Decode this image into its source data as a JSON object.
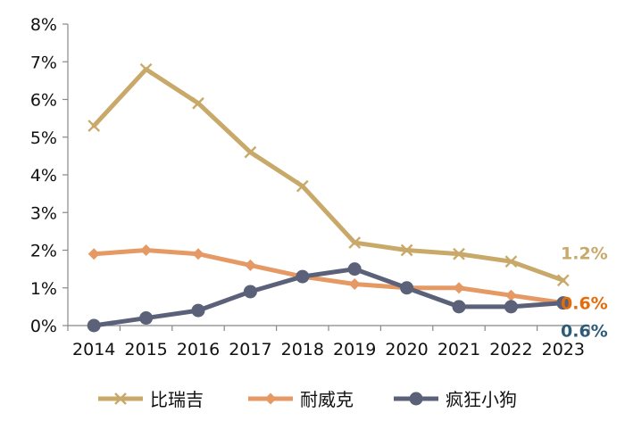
{
  "chart_data": {
    "type": "line",
    "title": "",
    "xlabel": "",
    "ylabel": "",
    "x": [
      "2014",
      "2015",
      "2016",
      "2017",
      "2018",
      "2019",
      "2020",
      "2021",
      "2022",
      "2023"
    ],
    "ylim": [
      0,
      8
    ],
    "y_unit": "%",
    "y_ticks": [
      "0%",
      "1%",
      "2%",
      "3%",
      "4%",
      "5%",
      "6%",
      "7%",
      "8%"
    ],
    "grid": false,
    "legend_position": "bottom",
    "series": [
      {
        "name": "比瑞吉",
        "color": "#C8A96A",
        "marker": "x",
        "end_label": "1.2%",
        "values": [
          5.3,
          6.8,
          5.9,
          4.6,
          3.7,
          2.2,
          2.0,
          1.9,
          1.7,
          1.2
        ]
      },
      {
        "name": "耐威克",
        "color": "#E59A66",
        "marker": "diamond",
        "end_label": "0.6%",
        "end_label_color": "#E46C0A",
        "values": [
          1.9,
          2.0,
          1.9,
          1.6,
          1.3,
          1.1,
          1.0,
          1.0,
          0.8,
          0.6
        ]
      },
      {
        "name": "疯狂小狗",
        "color": "#5A6178",
        "marker": "circle",
        "end_label": "0.6%",
        "end_label_color": "#2E5B78",
        "values": [
          0.0,
          0.2,
          0.4,
          0.9,
          1.3,
          1.5,
          1.0,
          0.5,
          0.5,
          0.6
        ]
      }
    ]
  }
}
